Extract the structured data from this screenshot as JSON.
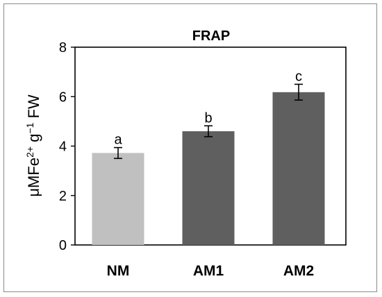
{
  "chart_data": {
    "type": "bar",
    "title": "FRAP",
    "ylabel": {
      "prefix": "μMFe",
      "sup1": "2+",
      "mid": " g",
      "sup2": "−1",
      "suffix": " FW"
    },
    "xlabel": "",
    "categories": [
      "NM",
      "AM1",
      "AM2"
    ],
    "values": [
      3.72,
      4.6,
      6.18
    ],
    "errors": [
      0.22,
      0.22,
      0.32
    ],
    "significance": [
      "a",
      "b",
      "c"
    ],
    "colors": [
      "#c0c0c0",
      "#5f5f5f",
      "#5f5f5f"
    ],
    "ylim": [
      0,
      8
    ],
    "yticks": [
      "0",
      "2",
      "4",
      "6",
      "8"
    ],
    "grid": false,
    "legend": "none"
  }
}
